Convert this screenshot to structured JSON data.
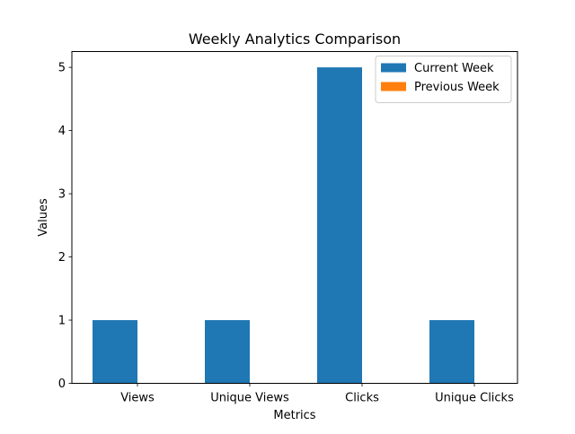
{
  "chart_data": {
    "type": "bar",
    "title": "Weekly Analytics Comparison",
    "xlabel": "Metrics",
    "ylabel": "Values",
    "categories": [
      "Views",
      "Unique Views",
      "Clicks",
      "Unique Clicks"
    ],
    "series": [
      {
        "name": "Current Week",
        "values": [
          1,
          1,
          5,
          1
        ],
        "color": "#1f77b4"
      },
      {
        "name": "Previous Week",
        "values": [
          0,
          0,
          0,
          0
        ],
        "color": "#ff7f0e"
      }
    ],
    "ylim": [
      0,
      5.25
    ],
    "yticks": [
      0,
      1,
      2,
      3,
      4,
      5
    ],
    "grid": false,
    "legend_position": "top-right"
  }
}
